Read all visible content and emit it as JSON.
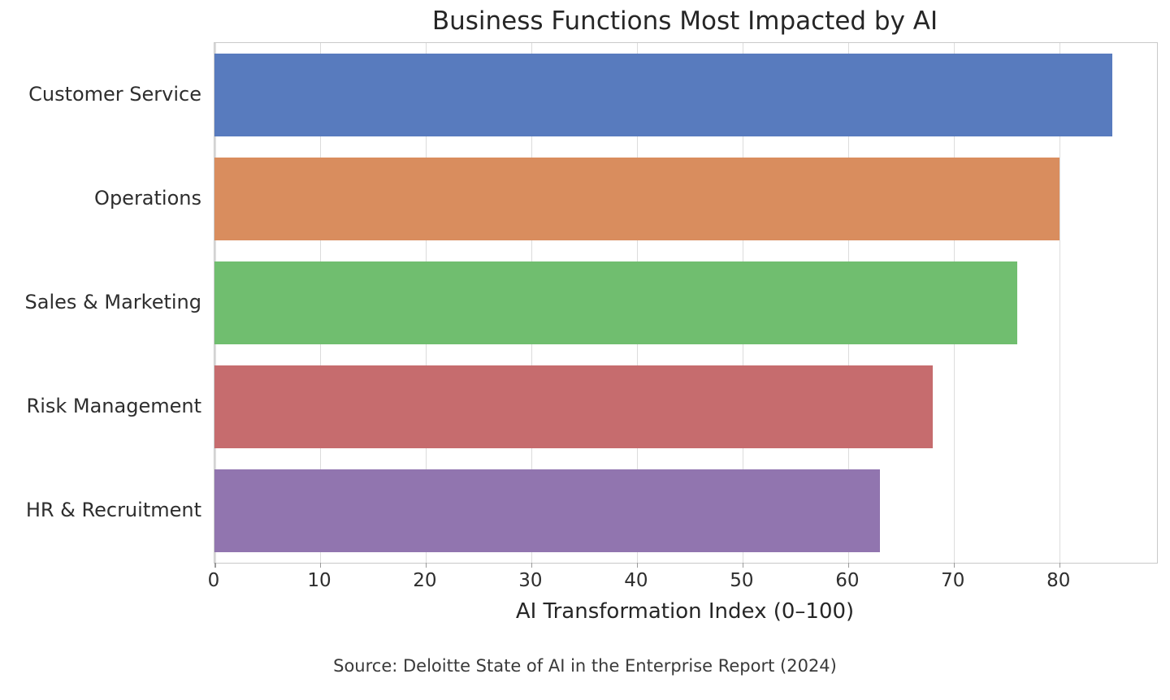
{
  "chart_data": {
    "type": "bar",
    "orientation": "horizontal",
    "title": "Business Functions Most Impacted by AI",
    "categories": [
      "Customer Service",
      "Operations",
      "Sales & Marketing",
      "Risk Management",
      "HR & Recruitment"
    ],
    "values": [
      85,
      80,
      76,
      68,
      63
    ],
    "bar_colors": [
      "#587BBE",
      "#D98D5E",
      "#70BE6F",
      "#C66C6E",
      "#9175AF"
    ],
    "xlabel": "AI Transformation Index (0–100)",
    "ylabel": "",
    "xticks": [
      0,
      10,
      20,
      30,
      40,
      50,
      60,
      70,
      80
    ],
    "xlim": [
      0,
      89.25
    ],
    "grid": "vertical",
    "legend": "none",
    "background": "#ffffff",
    "source": "Source: Deloitte State of AI in the Enterprise Report (2024)"
  }
}
